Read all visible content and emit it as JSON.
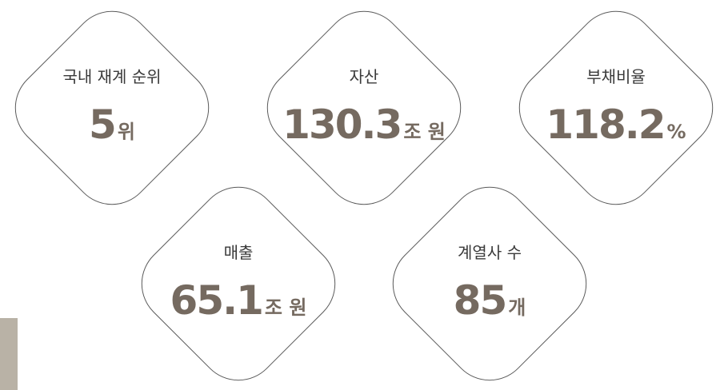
{
  "items": [
    {
      "label": "국내 재계 순위",
      "value": "5",
      "unit": "위"
    },
    {
      "label": "자산",
      "value": "130.3",
      "unit": "조 원"
    },
    {
      "label": "부채비율",
      "value": "118.2",
      "unit": "%"
    },
    {
      "label": "매출",
      "value": "65.1",
      "unit": "조 원"
    },
    {
      "label": "계열사 수",
      "value": "85",
      "unit": "개"
    }
  ]
}
